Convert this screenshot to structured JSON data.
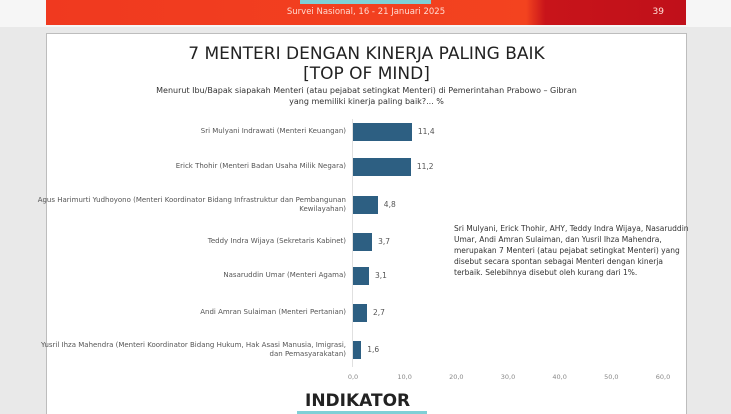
{
  "header": {
    "survey": "Survei Nasional, 16 - 21 Januari 2025",
    "page": "39"
  },
  "slide": {
    "title_line1": "7 MENTERI DENGAN KINERJA PALING BAIK",
    "title_line2": "[TOP OF MIND]",
    "subtitle_line1": "Menurut Ibu/Bapak siapakah Menteri (atau pejabat setingkat Menteri) di Pemerintahan Prabowo – Gibran",
    "subtitle_line2": "yang memiliki kinerja paling baik?... %",
    "note": "Sri Mulyani, Erick Thohir, AHY, Teddy Indra Wijaya, Nasaruddin Umar, Andi Amran Sulaiman, dan Yusril Ihza Mahendra, merupakan 7 Menteri (atau pejabat setingkat Menteri) yang disebut secara spontan sebagai Menteri dengan kinerja terbaik. Selebihnya disebut oleh kurang dari 1%.",
    "logo": "INDIKATOR"
  },
  "chart_data": {
    "type": "bar",
    "orientation": "horizontal",
    "categories": [
      "Sri Mulyani Indrawati (Menteri Keuangan)",
      "Erick Thohir (Menteri Badan Usaha Milik Negara)",
      "Agus Harimurti Yudhoyono (Menteri Koordinator Bidang Infrastruktur dan Pembangunan Kewilayahan)",
      "Teddy Indra Wijaya (Sekretaris Kabinet)",
      "Nasaruddin Umar (Menteri Agama)",
      "Andi Amran Sulaiman (Menteri Pertanian)",
      "Yusril Ihza Mahendra (Menteri Koordinator Bidang Hukum, Hak Asasi Manusia, Imigrasi, dan Pemasyarakatan)"
    ],
    "values": [
      11.4,
      11.2,
      4.8,
      3.7,
      3.1,
      2.7,
      1.6
    ],
    "value_labels": [
      "11,4",
      "11,2",
      "4,8",
      "3,7",
      "3,1",
      "2,7",
      "1,6"
    ],
    "xlim": [
      0,
      60
    ],
    "ticks": [
      "0,0",
      "10,0",
      "20,0",
      "30,0",
      "40,0",
      "50,0",
      "60,0"
    ],
    "bar_color": "#2d5f82",
    "grid": false
  }
}
